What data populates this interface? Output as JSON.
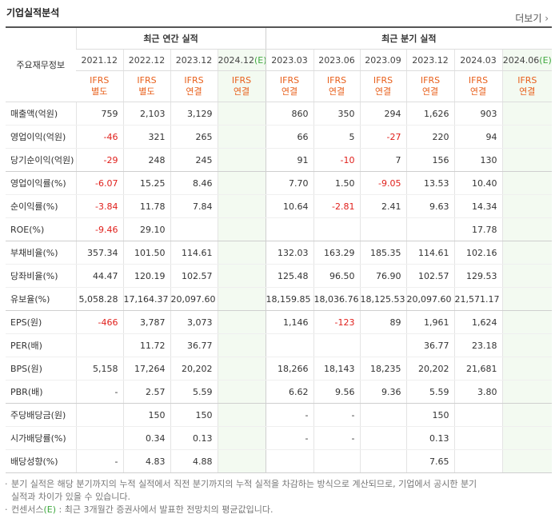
{
  "header": {
    "title": "기업실적분석",
    "more": "더보기"
  },
  "table": {
    "corner": "주요재무정보",
    "groups": [
      {
        "name": "최근 연간 실적",
        "columns": [
          {
            "period": "2021.12",
            "standard": "IFRS",
            "scope": "별도"
          },
          {
            "period": "2022.12",
            "standard": "IFRS",
            "scope": "별도"
          },
          {
            "period": "2023.12",
            "standard": "IFRS",
            "scope": "연결"
          },
          {
            "period": "2024.12",
            "estimate": "(E)",
            "standard": "IFRS",
            "scope": "연결"
          }
        ]
      },
      {
        "name": "최근 분기 실적",
        "columns": [
          {
            "period": "2023.03",
            "standard": "IFRS",
            "scope": "연결"
          },
          {
            "period": "2023.06",
            "standard": "IFRS",
            "scope": "연결"
          },
          {
            "period": "2023.09",
            "standard": "IFRS",
            "scope": "연결"
          },
          {
            "period": "2023.12",
            "standard": "IFRS",
            "scope": "연결"
          },
          {
            "period": "2024.03",
            "standard": "IFRS",
            "scope": "연결"
          },
          {
            "period": "2024.06",
            "estimate": "(E)",
            "standard": "IFRS",
            "scope": "연결"
          }
        ]
      }
    ],
    "sections": [
      [
        {
          "label": "매출액(억원)",
          "cells": [
            "759",
            "2,103",
            "3,129",
            null,
            "860",
            "350",
            "294",
            "1,626",
            "903",
            null
          ]
        },
        {
          "label": "영업이익(억원)",
          "cells": [
            "-46",
            "321",
            "265",
            null,
            "66",
            "5",
            "-27",
            "220",
            "94",
            null
          ]
        },
        {
          "label": "당기순이익(억원)",
          "cells": [
            "-29",
            "248",
            "245",
            null,
            "91",
            "-10",
            "7",
            "156",
            "130",
            null
          ]
        }
      ],
      [
        {
          "label": "영업이익률(%)",
          "cells": [
            "-6.07",
            "15.25",
            "8.46",
            null,
            "7.70",
            "1.50",
            "-9.05",
            "13.53",
            "10.40",
            null
          ]
        },
        {
          "label": "순이익률(%)",
          "cells": [
            "-3.84",
            "11.78",
            "7.84",
            null,
            "10.64",
            "-2.81",
            "2.41",
            "9.63",
            "14.34",
            null
          ]
        },
        {
          "label": "ROE(%)",
          "cells": [
            "-9.46",
            "29.10",
            null,
            null,
            null,
            null,
            null,
            null,
            "17.78",
            null
          ]
        }
      ],
      [
        {
          "label": "부채비율(%)",
          "cells": [
            "357.34",
            "101.50",
            "114.61",
            null,
            "132.03",
            "163.29",
            "185.35",
            "114.61",
            "102.16",
            null
          ]
        },
        {
          "label": "당좌비율(%)",
          "cells": [
            "44.47",
            "120.19",
            "102.57",
            null,
            "125.48",
            "96.50",
            "76.90",
            "102.57",
            "129.53",
            null
          ]
        },
        {
          "label": "유보율(%)",
          "cells": [
            "5,058.28",
            "17,164.37",
            "20,097.60",
            null,
            "18,159.85",
            "18,036.76",
            "18,125.53",
            "20,097.60",
            "21,571.17",
            null
          ]
        }
      ],
      [
        {
          "label": "EPS(원)",
          "cells": [
            "-466",
            "3,787",
            "3,073",
            null,
            "1,146",
            "-123",
            "89",
            "1,961",
            "1,624",
            null
          ]
        },
        {
          "label": "PER(배)",
          "cells": [
            null,
            "11.72",
            "36.77",
            null,
            null,
            null,
            null,
            "36.77",
            "23.18",
            null
          ]
        },
        {
          "label": "BPS(원)",
          "cells": [
            "5,158",
            "17,264",
            "20,202",
            null,
            "18,266",
            "18,143",
            "18,235",
            "20,202",
            "21,681",
            null
          ]
        },
        {
          "label": "PBR(배)",
          "cells": [
            "-",
            "2.57",
            "5.59",
            null,
            "6.62",
            "9.56",
            "9.36",
            "5.59",
            "3.80",
            null
          ]
        }
      ],
      [
        {
          "label": "주당배당금(원)",
          "cells": [
            null,
            "150",
            "150",
            null,
            "-",
            "-",
            null,
            "150",
            null,
            null
          ]
        },
        {
          "label": "시가배당률(%)",
          "cells": [
            null,
            "0.34",
            "0.13",
            null,
            "-",
            "-",
            null,
            "0.13",
            null,
            null
          ]
        },
        {
          "label": "배당성향(%)",
          "cells": [
            "-",
            "4.83",
            "4.88",
            null,
            null,
            null,
            null,
            "7.65",
            null,
            null
          ]
        }
      ]
    ]
  },
  "notes": [
    "분기 실적은 해당 분기까지의 누적 실적에서 직전 분기까지의 누적 실적을 차감하는 방식으로 계산되므로, 기업에서 공시한 분기 실적과 차이가 있을 수 있습니다.",
    {
      "before": "컨센서스",
      "mark": "(E)",
      "after": " : 최근 3개월간 증권사에서 발표한 전망치의 평균값입니다."
    }
  ]
}
